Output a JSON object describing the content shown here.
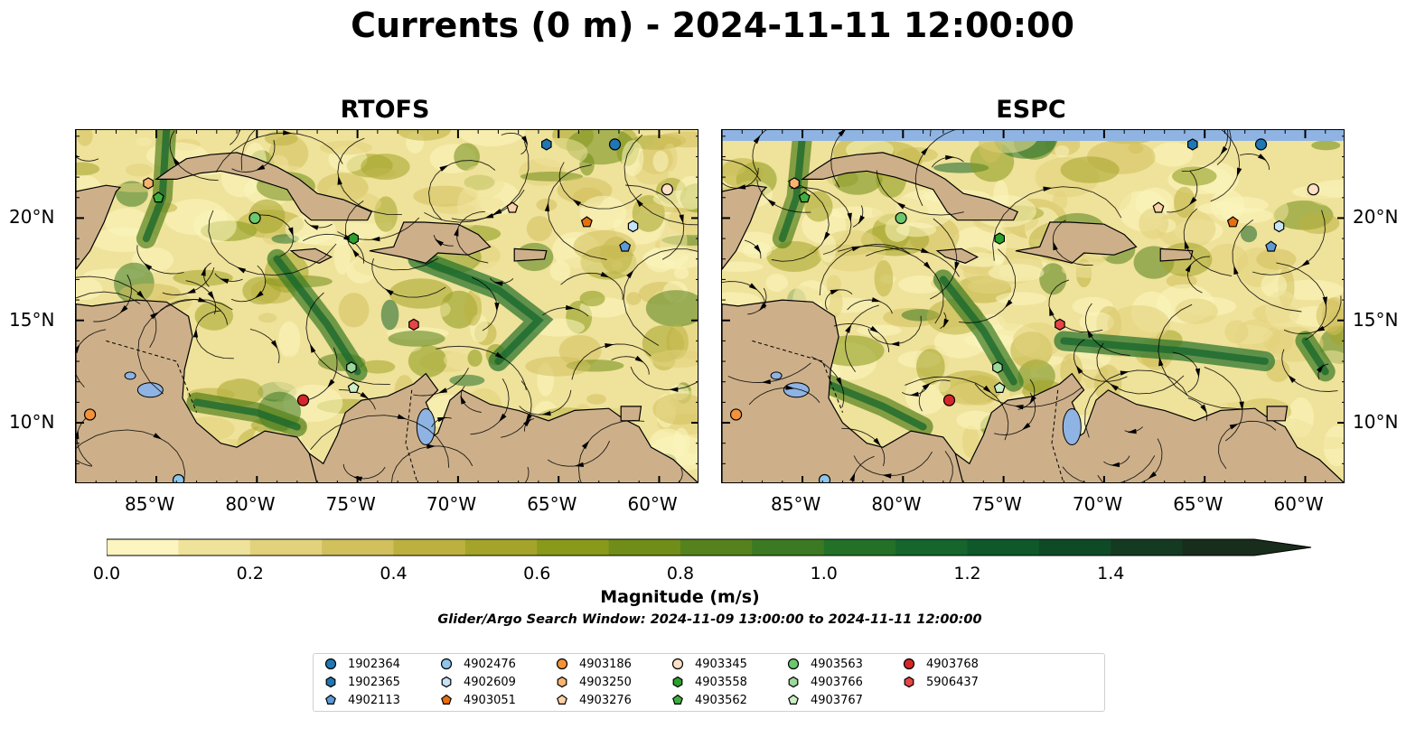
{
  "title": "Currents (0 m) - 2024-11-11 12:00:00",
  "panels": [
    {
      "name": "RTOFS"
    },
    {
      "name": "ESPC"
    }
  ],
  "map": {
    "lon_range": [
      -89,
      -58
    ],
    "lat_range": [
      7,
      24.3
    ],
    "x_ticks": [
      "85°W",
      "80°W",
      "75°W",
      "70°W",
      "65°W",
      "60°W"
    ],
    "y_ticks": [
      "20°N",
      "15°N",
      "10°N"
    ],
    "land_color": "#cdb08a",
    "water_feature_color": "#8fb4e3"
  },
  "colorbar": {
    "label": "Magnitude (m/s)",
    "ticks": [
      "0.0",
      "0.2",
      "0.4",
      "0.6",
      "0.8",
      "1.0",
      "1.2",
      "1.4"
    ],
    "range": [
      0,
      1.6
    ],
    "extend": "max",
    "colors": [
      "#fcf5c0",
      "#efe29a",
      "#e2d27c",
      "#d1c05c",
      "#bcb13f",
      "#a4a42a",
      "#89991a",
      "#6f8d18",
      "#55821c",
      "#3b7a23",
      "#237029",
      "#15652c",
      "#0f582a",
      "#0f4a26",
      "#153a22",
      "#182d1c"
    ]
  },
  "caption": "Glider/Argo Search Window: 2024-11-09 13:00:00 to 2024-11-11 12:00:00",
  "legend": {
    "items": [
      {
        "label": "1902364",
        "color": "#1f77b4",
        "marker": "circle"
      },
      {
        "label": "1902365",
        "color": "#1f77b4",
        "marker": "hexagon"
      },
      {
        "label": "4902113",
        "color": "#5d9ad6",
        "marker": "pentagon"
      },
      {
        "label": "4902476",
        "color": "#8ec5ea",
        "marker": "circle"
      },
      {
        "label": "4902609",
        "color": "#c6e2f5",
        "marker": "hexagon"
      },
      {
        "label": "4903051",
        "color": "#e6700f",
        "marker": "pentagon"
      },
      {
        "label": "4903186",
        "color": "#f3923a",
        "marker": "circle"
      },
      {
        "label": "4903250",
        "color": "#f7b46f",
        "marker": "hexagon"
      },
      {
        "label": "4903276",
        "color": "#fbd3a6",
        "marker": "pentagon"
      },
      {
        "label": "4903345",
        "color": "#fde0c6",
        "marker": "circle"
      },
      {
        "label": "4903558",
        "color": "#2ca02c",
        "marker": "hexagon"
      },
      {
        "label": "4903562",
        "color": "#3fae3f",
        "marker": "pentagon"
      },
      {
        "label": "4903563",
        "color": "#6cc86c",
        "marker": "circle"
      },
      {
        "label": "4903766",
        "color": "#9ad99a",
        "marker": "hexagon"
      },
      {
        "label": "4903767",
        "color": "#cdeec7",
        "marker": "pentagon"
      },
      {
        "label": "4903768",
        "color": "#d62728",
        "marker": "circle"
      },
      {
        "label": "5906437",
        "color": "#e64545",
        "marker": "hexagon"
      }
    ]
  },
  "platform_positions": [
    {
      "id": "1902364",
      "lon": -62.2,
      "lat": 23.6
    },
    {
      "id": "1902365",
      "lon": -65.6,
      "lat": 23.6
    },
    {
      "id": "4902113",
      "lon": -61.7,
      "lat": 18.6
    },
    {
      "id": "4902476",
      "lon": -83.9,
      "lat": 7.2
    },
    {
      "id": "4902609",
      "lon": -61.3,
      "lat": 19.6
    },
    {
      "id": "4903051",
      "lon": -63.6,
      "lat": 19.8
    },
    {
      "id": "4903186",
      "lon": -88.3,
      "lat": 10.4
    },
    {
      "id": "4903250",
      "lon": -85.4,
      "lat": 21.7
    },
    {
      "id": "4903276",
      "lon": -67.3,
      "lat": 20.5
    },
    {
      "id": "4903345",
      "lon": -59.6,
      "lat": 21.4
    },
    {
      "id": "4903558",
      "lon": -75.2,
      "lat": 19.0
    },
    {
      "id": "4903562",
      "lon": -84.9,
      "lat": 21.0
    },
    {
      "id": "4903563",
      "lon": -80.1,
      "lat": 20.0
    },
    {
      "id": "4903766",
      "lon": -75.3,
      "lat": 12.7
    },
    {
      "id": "4903767",
      "lon": -75.2,
      "lat": 11.7
    },
    {
      "id": "4903768",
      "lon": -77.7,
      "lat": 11.1
    },
    {
      "id": "5906437",
      "lon": -72.2,
      "lat": 14.8
    }
  ]
}
